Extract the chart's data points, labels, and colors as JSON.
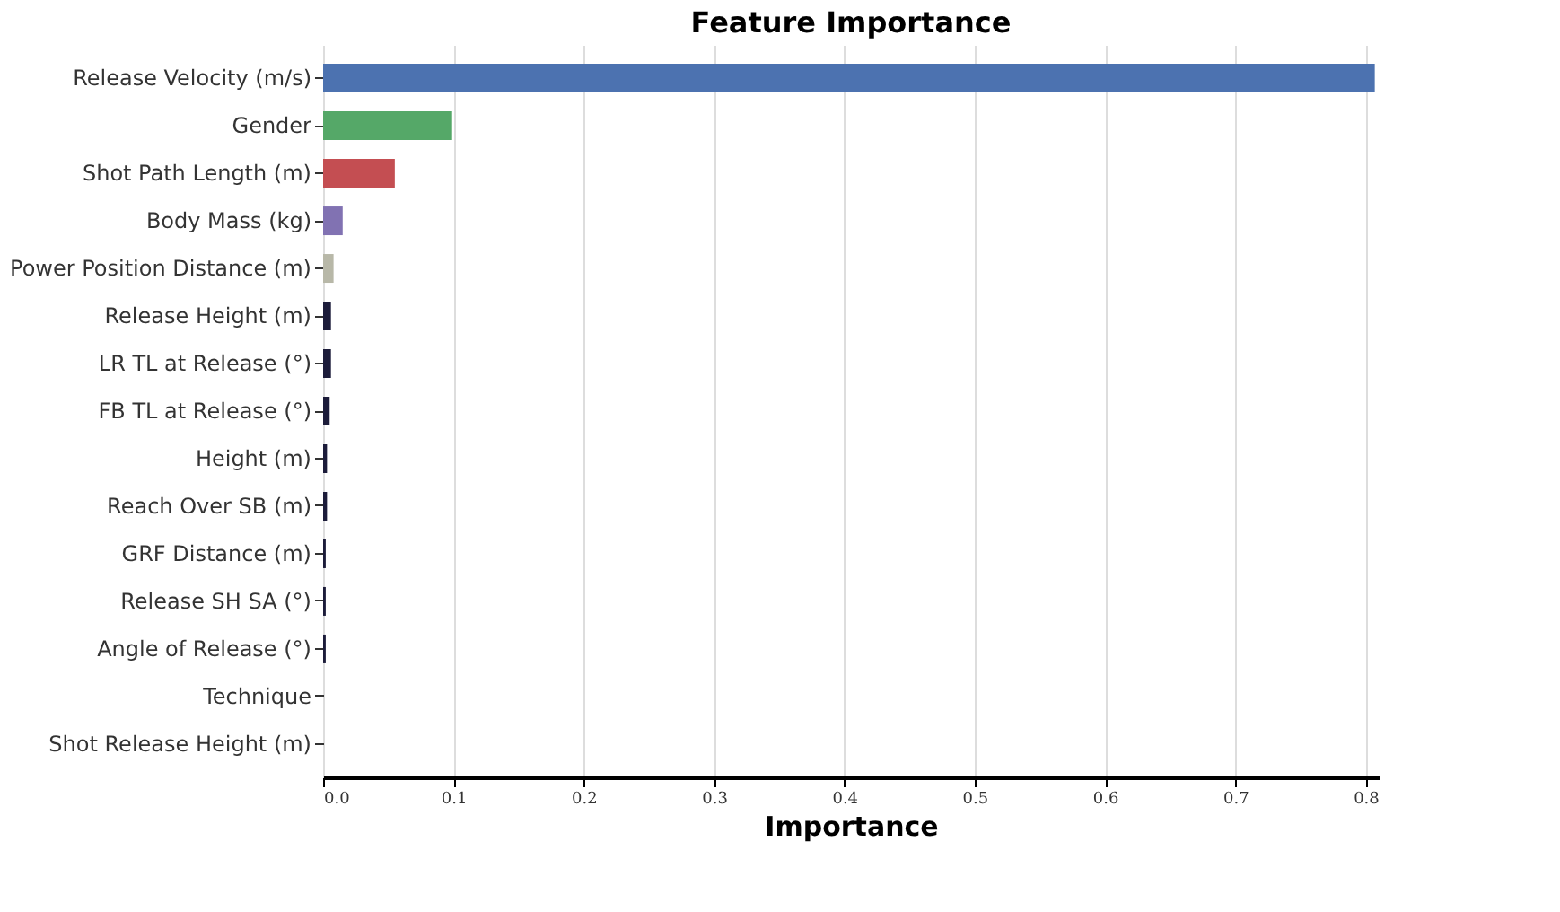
{
  "chart_data": {
    "type": "bar",
    "orientation": "horizontal",
    "title": "Feature Importance",
    "xlabel": "Importance",
    "categories": [
      "Release Velocity (m/s)",
      "Gender",
      "Shot Path Length (m)",
      "Body Mass (kg)",
      "Power Position Distance (m)",
      "Release Height (m)",
      "LR TL at Release (°)",
      "FB TL at Release (°)",
      "Height (m)",
      "Reach Over SB (m)",
      "GRF Distance (m)",
      "Release SH SA (°)",
      "Angle of Release (°)",
      "Technique",
      "Shot Release Height (m)"
    ],
    "values": [
      0.807,
      0.099,
      0.055,
      0.015,
      0.008,
      0.006,
      0.006,
      0.005,
      0.003,
      0.003,
      0.002,
      0.002,
      0.002,
      0.0,
      0.0
    ],
    "colors": [
      "#4c72b0",
      "#55a868",
      "#c44e52",
      "#8172b2",
      "#b8b8a8",
      "#1c1c3a",
      "#1c1c3a",
      "#1c1c3a",
      "#1c1c3a",
      "#1c1c3a",
      "#1c1c3a",
      "#1c1c3a",
      "#1c1c3a",
      "#1c1c3a",
      "#1c1c3a"
    ],
    "xlim": [
      0,
      0.81
    ],
    "xticks": [
      {
        "value": 0,
        "label": "0.0"
      },
      0.1,
      0.2,
      0.3,
      0.4,
      0.5,
      0.6,
      0.7,
      0.8
    ],
    "grid": "x"
  }
}
